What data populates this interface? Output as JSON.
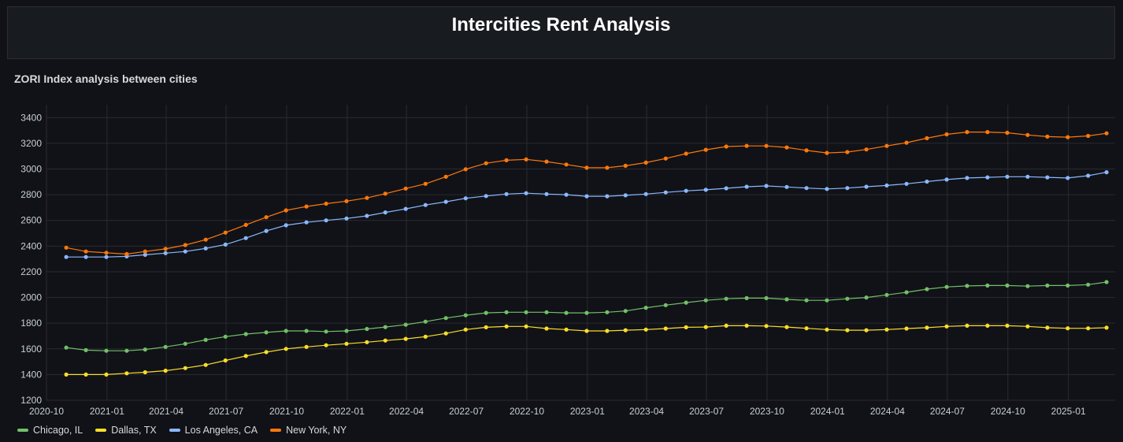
{
  "dashboard": {
    "title": "Intercities Rent Analysis"
  },
  "panel": {
    "title": "ZORI Index analysis between cities"
  },
  "chart_data": {
    "type": "line",
    "title": "ZORI Index analysis between cities",
    "xlabel": "",
    "ylabel": "",
    "x_range": [
      "2020-10",
      "2025-03"
    ],
    "ylim": [
      1200,
      3500
    ],
    "grid": true,
    "legend_position": "bottom-left",
    "x_ticks": [
      "2020-10",
      "2021-01",
      "2021-04",
      "2021-07",
      "2021-10",
      "2022-01",
      "2022-04",
      "2022-07",
      "2022-10",
      "2023-01",
      "2023-04",
      "2023-07",
      "2023-10",
      "2024-01",
      "2024-04",
      "2024-07",
      "2024-10",
      "2025-01"
    ],
    "y_ticks": [
      1200,
      1400,
      1600,
      1800,
      2000,
      2200,
      2400,
      2600,
      2800,
      3000,
      3200,
      3400
    ],
    "x": [
      "2020-10-31",
      "2020-11-30",
      "2020-12-31",
      "2021-01-31",
      "2021-02-28",
      "2021-03-31",
      "2021-04-30",
      "2021-05-31",
      "2021-06-30",
      "2021-07-31",
      "2021-08-31",
      "2021-09-30",
      "2021-10-31",
      "2021-11-30",
      "2021-12-31",
      "2022-01-31",
      "2022-02-28",
      "2022-03-31",
      "2022-04-30",
      "2022-05-31",
      "2022-06-30",
      "2022-07-31",
      "2022-08-31",
      "2022-09-30",
      "2022-10-31",
      "2022-11-30",
      "2022-12-31",
      "2023-01-31",
      "2023-02-28",
      "2023-03-31",
      "2023-04-30",
      "2023-05-31",
      "2023-06-30",
      "2023-07-31",
      "2023-08-31",
      "2023-09-30",
      "2023-10-31",
      "2023-11-30",
      "2023-12-31",
      "2024-01-31",
      "2024-02-29",
      "2024-03-31",
      "2024-04-30",
      "2024-05-31",
      "2024-06-30",
      "2024-07-31",
      "2024-08-31",
      "2024-09-30",
      "2024-10-31",
      "2024-11-30",
      "2024-12-31",
      "2025-01-31",
      "2025-02-28"
    ],
    "series": [
      {
        "name": "Chicago, IL",
        "color": "#73bf69",
        "values": [
          1610,
          1590,
          1585,
          1585,
          1595,
          1615,
          1640,
          1670,
          1695,
          1715,
          1728,
          1740,
          1740,
          1735,
          1740,
          1755,
          1770,
          1788,
          1812,
          1840,
          1862,
          1880,
          1885,
          1885,
          1885,
          1880,
          1880,
          1885,
          1895,
          1920,
          1940,
          1960,
          1978,
          1990,
          1995,
          1995,
          1985,
          1978,
          1978,
          1990,
          2000,
          2020,
          2040,
          2065,
          2082,
          2090,
          2093,
          2093,
          2088,
          2093,
          2093,
          2100,
          2120
        ]
      },
      {
        "name": "Dallas, TX",
        "color": "#fade2a",
        "values": [
          1400,
          1400,
          1400,
          1410,
          1418,
          1430,
          1450,
          1475,
          1510,
          1545,
          1575,
          1600,
          1615,
          1628,
          1640,
          1652,
          1665,
          1678,
          1695,
          1720,
          1750,
          1768,
          1775,
          1775,
          1758,
          1750,
          1740,
          1740,
          1745,
          1750,
          1758,
          1768,
          1770,
          1780,
          1780,
          1778,
          1770,
          1760,
          1750,
          1745,
          1745,
          1750,
          1758,
          1765,
          1775,
          1780,
          1780,
          1780,
          1775,
          1765,
          1760,
          1760,
          1765
        ]
      },
      {
        "name": "Los Angeles, CA",
        "color": "#8ab8ff",
        "values": [
          2315,
          2315,
          2315,
          2320,
          2332,
          2345,
          2358,
          2382,
          2412,
          2462,
          2518,
          2562,
          2585,
          2600,
          2615,
          2635,
          2662,
          2690,
          2720,
          2745,
          2772,
          2790,
          2805,
          2812,
          2805,
          2800,
          2788,
          2788,
          2795,
          2805,
          2818,
          2830,
          2838,
          2850,
          2862,
          2868,
          2860,
          2852,
          2845,
          2852,
          2862,
          2872,
          2885,
          2902,
          2918,
          2930,
          2935,
          2940,
          2940,
          2935,
          2930,
          2948,
          2975
        ]
      },
      {
        "name": "New York, NY",
        "color": "#ff780a",
        "values": [
          2388,
          2358,
          2348,
          2338,
          2358,
          2378,
          2408,
          2450,
          2505,
          2565,
          2625,
          2678,
          2708,
          2730,
          2750,
          2775,
          2808,
          2848,
          2885,
          2940,
          2998,
          3045,
          3068,
          3075,
          3058,
          3035,
          3010,
          3010,
          3025,
          3050,
          3082,
          3120,
          3150,
          3175,
          3180,
          3180,
          3168,
          3145,
          3125,
          3132,
          3152,
          3180,
          3205,
          3240,
          3270,
          3288,
          3288,
          3282,
          3265,
          3252,
          3248,
          3258,
          3278
        ]
      }
    ]
  }
}
